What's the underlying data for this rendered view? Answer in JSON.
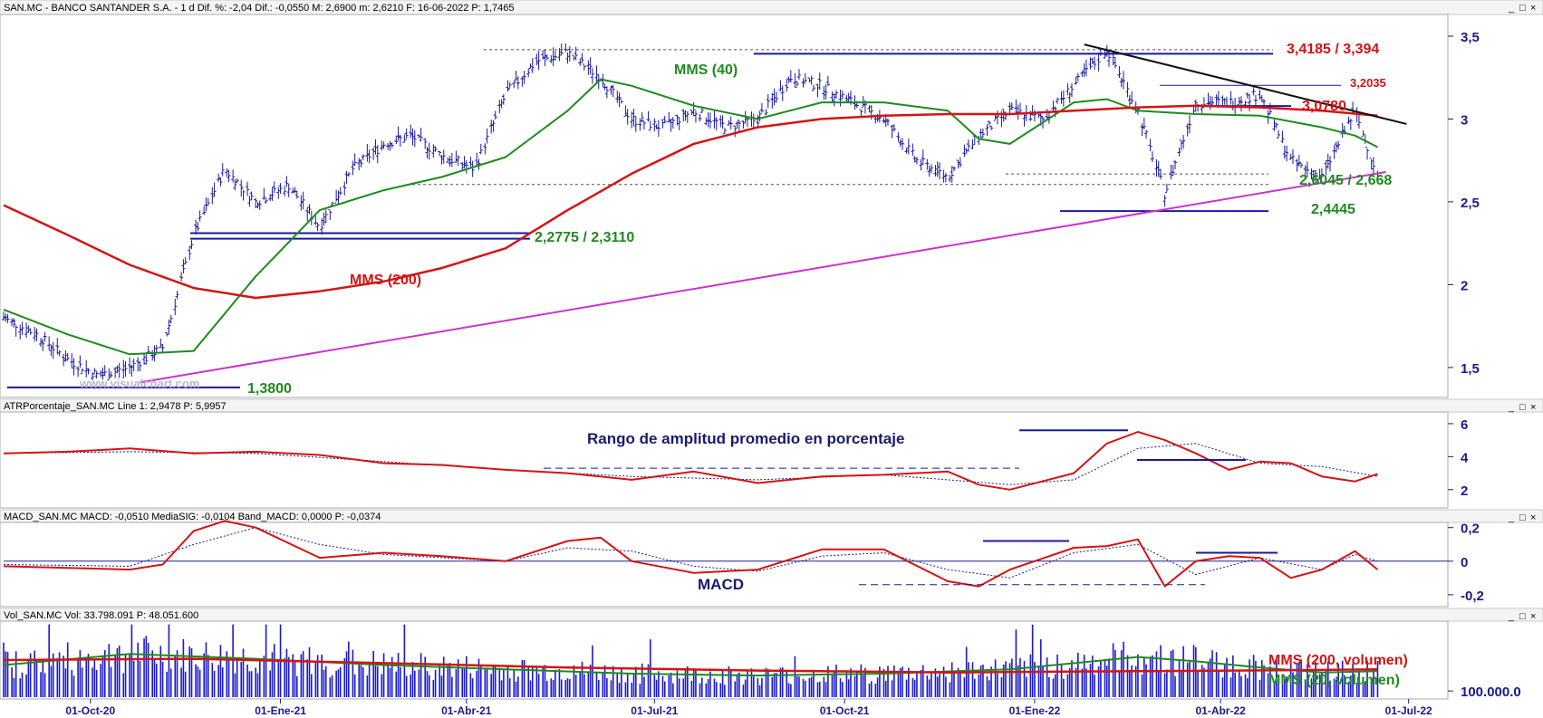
{
  "panels": {
    "price": {
      "header": "SAN.MC - BANCO SANTANDER S.A. - 1 d Dif. %: -2,04 Dif.: -0,0550 M: 2,6900 m: 2,6210 F: 16-06-2022 P: 1,7465"
    },
    "atr": {
      "header": "ATRPorcentaje_SAN.MC Line 1: 2,9478 P: 5,9957"
    },
    "macd": {
      "header": "MACD_SAN.MC MACD: -0,0510 MediaSIG: -0,0104 Band_MACD: 0,0000 P: -0,0374"
    },
    "vol": {
      "header": "Vol_SAN.MC Vol: 33.798.091 P: 48.051.600"
    }
  },
  "watermark": "www.visualchart.com",
  "window_buttons": [
    "_",
    "□",
    "×"
  ],
  "chart_data": [
    {
      "type": "line",
      "subtype": "ohlc-bars",
      "name": "price",
      "title": "SAN.MC - BANCO SANTANDER S.A. - 1 d",
      "x_ticks": [
        "01-Oct-20",
        "01-Ene-21",
        "01-Abr-21",
        "01-Jul-21",
        "01-Oct-21",
        "01-Ene-22",
        "01-Abr-22",
        "01-Jul-22"
      ],
      "x_range": [
        "2020-08-20",
        "2022-07-20"
      ],
      "y_ticks": [
        "3,5",
        "3",
        "2,5",
        "2",
        "1,5"
      ],
      "ylim": [
        1.33,
        3.62
      ],
      "series": [
        {
          "name": "price",
          "color": "#1a1a9c",
          "x": [
            "2020-08-20",
            "2020-09-05",
            "2020-09-20",
            "2020-10-05",
            "2020-10-20",
            "2020-11-05",
            "2020-11-20",
            "2020-12-05",
            "2020-12-20",
            "2021-01-05",
            "2021-01-20",
            "2021-02-05",
            "2021-02-20",
            "2021-03-05",
            "2021-03-20",
            "2021-04-05",
            "2021-04-20",
            "2021-05-05",
            "2021-05-20",
            "2021-06-05",
            "2021-06-20",
            "2021-07-05",
            "2021-07-20",
            "2021-08-05",
            "2021-08-20",
            "2021-09-05",
            "2021-09-20",
            "2021-10-05",
            "2021-10-20",
            "2021-11-05",
            "2021-11-20",
            "2021-12-05",
            "2021-12-20",
            "2022-01-05",
            "2022-01-20",
            "2022-02-05",
            "2022-02-20",
            "2022-03-05",
            "2022-03-20",
            "2022-04-05",
            "2022-04-20",
            "2022-05-05",
            "2022-05-20",
            "2022-06-05",
            "2022-06-16"
          ],
          "values": [
            1.8,
            1.7,
            1.55,
            1.45,
            1.5,
            1.62,
            2.3,
            2.7,
            2.5,
            2.6,
            2.35,
            2.7,
            2.85,
            2.9,
            2.78,
            2.7,
            3.15,
            3.35,
            3.4,
            3.25,
            3.0,
            2.95,
            3.05,
            2.95,
            3.0,
            3.25,
            3.2,
            3.1,
            3.0,
            2.75,
            2.65,
            2.9,
            3.05,
            3.0,
            3.2,
            3.42,
            3.05,
            2.55,
            3.1,
            3.1,
            3.15,
            2.75,
            2.65,
            3.05,
            2.66
          ]
        },
        {
          "name": "MMS (40)",
          "color": "#1f8a1f",
          "x": [
            "2020-08-20",
            "2020-09-20",
            "2020-10-20",
            "2020-11-20",
            "2020-12-20",
            "2021-01-20",
            "2021-02-20",
            "2021-03-20",
            "2021-04-20",
            "2021-05-20",
            "2021-06-05",
            "2021-06-20",
            "2021-07-20",
            "2021-08-20",
            "2021-09-20",
            "2021-10-20",
            "2021-11-20",
            "2021-12-05",
            "2021-12-20",
            "2022-01-20",
            "2022-02-05",
            "2022-02-20",
            "2022-03-20",
            "2022-04-20",
            "2022-05-20",
            "2022-06-05",
            "2022-06-16"
          ],
          "values": [
            1.85,
            1.7,
            1.58,
            1.6,
            2.05,
            2.45,
            2.57,
            2.65,
            2.77,
            3.05,
            3.24,
            3.2,
            3.08,
            3.0,
            3.1,
            3.1,
            3.05,
            2.88,
            2.85,
            3.1,
            3.12,
            3.05,
            3.03,
            3.02,
            2.95,
            2.9,
            2.83
          ]
        },
        {
          "name": "MMS (200)",
          "color": "#d41414",
          "x": [
            "2020-08-20",
            "2020-09-20",
            "2020-10-20",
            "2020-11-20",
            "2020-12-20",
            "2021-01-20",
            "2021-02-20",
            "2021-03-20",
            "2021-04-20",
            "2021-05-20",
            "2021-06-20",
            "2021-07-20",
            "2021-08-20",
            "2021-09-20",
            "2021-10-20",
            "2021-11-20",
            "2021-12-20",
            "2022-01-20",
            "2022-02-20",
            "2022-03-20",
            "2022-04-20",
            "2022-05-20",
            "2022-06-16"
          ],
          "values": [
            2.48,
            2.3,
            2.12,
            1.98,
            1.92,
            1.96,
            2.02,
            2.1,
            2.22,
            2.45,
            2.67,
            2.85,
            2.95,
            3.0,
            3.02,
            3.03,
            3.03,
            3.05,
            3.07,
            3.08,
            3.07,
            3.05,
            3.02
          ]
        }
      ],
      "annotations": [
        {
          "label": "MMS (40)",
          "color": "#1f8a1f"
        },
        {
          "label": "MMS (200)",
          "color": "#d41414"
        },
        {
          "label": "3,4185 / 3,394",
          "color": "#d41414",
          "levels": [
            3.4185,
            3.394
          ]
        },
        {
          "label": "3,2035",
          "color": "#d41414",
          "levels": [
            3.2035
          ]
        },
        {
          "label": "3,0780",
          "color": "#d41414",
          "levels": [
            3.078
          ]
        },
        {
          "label": "2,6045 / 2,668",
          "color": "#1f8a1f",
          "levels": [
            2.6045,
            2.668
          ]
        },
        {
          "label": "2,4445",
          "color": "#1f8a1f",
          "levels": [
            2.4445
          ]
        },
        {
          "label": "2,2775 / 2,3110",
          "color": "#1f8a1f",
          "levels": [
            2.2775,
            2.311
          ]
        },
        {
          "label": "1,3800",
          "color": "#1f8a1f",
          "levels": [
            1.38
          ]
        }
      ],
      "trendlines": [
        {
          "color": "#cc33cc",
          "from": [
            "2020-10-25",
            1.41
          ],
          "to": [
            "2022-06-20",
            2.68
          ]
        },
        {
          "color": "#111111",
          "from": [
            "2022-01-25",
            3.45
          ],
          "to": [
            "2022-06-30",
            2.97
          ]
        }
      ]
    },
    {
      "type": "line",
      "name": "atr",
      "title": "Rango de amplitud promedio en porcentaje",
      "y_ticks": [
        "6",
        "4",
        "2"
      ],
      "ylim": [
        1.0,
        6.6
      ],
      "series": [
        {
          "name": "ATR %",
          "color": "#d41414",
          "x": [
            "2020-08-20",
            "2020-09-20",
            "2020-10-20",
            "2020-11-20",
            "2020-12-20",
            "2021-01-20",
            "2021-02-20",
            "2021-03-20",
            "2021-04-20",
            "2021-05-20",
            "2021-06-20",
            "2021-07-20",
            "2021-08-20",
            "2021-09-20",
            "2021-10-20",
            "2021-11-20",
            "2021-12-05",
            "2021-12-20",
            "2022-01-20",
            "2022-02-05",
            "2022-02-20",
            "2022-03-05",
            "2022-03-20",
            "2022-04-05",
            "2022-04-20",
            "2022-05-05",
            "2022-05-20",
            "2022-06-05",
            "2022-06-16"
          ],
          "values": [
            4.2,
            4.3,
            4.5,
            4.2,
            4.3,
            4.1,
            3.6,
            3.5,
            3.2,
            3.0,
            2.6,
            3.1,
            2.4,
            2.8,
            2.9,
            3.1,
            2.3,
            2.0,
            3.0,
            4.8,
            5.5,
            5.0,
            4.2,
            3.2,
            3.7,
            3.6,
            2.8,
            2.5,
            2.95
          ]
        },
        {
          "name": "signal",
          "color": "#1a1a9c",
          "x": [
            "2020-08-20",
            "2020-10-20",
            "2020-12-20",
            "2021-02-20",
            "2021-04-20",
            "2021-06-20",
            "2021-08-20",
            "2021-10-20",
            "2021-12-20",
            "2022-01-20",
            "2022-02-20",
            "2022-03-20",
            "2022-04-20",
            "2022-05-20",
            "2022-06-16"
          ],
          "values": [
            4.2,
            4.3,
            4.2,
            3.7,
            3.2,
            2.8,
            2.6,
            2.9,
            2.3,
            2.6,
            4.5,
            4.8,
            3.6,
            3.4,
            2.8
          ]
        }
      ]
    },
    {
      "type": "line",
      "name": "macd",
      "title": "MACD",
      "y_ticks": [
        "0,2",
        "0",
        "-0,2"
      ],
      "ylim": [
        -0.26,
        0.22
      ],
      "series": [
        {
          "name": "MACD",
          "color": "#d41414",
          "x": [
            "2020-08-20",
            "2020-09-20",
            "2020-10-20",
            "2020-11-05",
            "2020-11-20",
            "2020-12-05",
            "2020-12-20",
            "2021-01-20",
            "2021-02-20",
            "2021-03-20",
            "2021-04-20",
            "2021-05-20",
            "2021-06-05",
            "2021-06-20",
            "2021-07-20",
            "2021-08-20",
            "2021-09-20",
            "2021-10-20",
            "2021-11-20",
            "2021-12-05",
            "2021-12-20",
            "2022-01-20",
            "2022-02-05",
            "2022-02-20",
            "2022-03-05",
            "2022-03-20",
            "2022-04-05",
            "2022-04-20",
            "2022-05-05",
            "2022-05-20",
            "2022-06-05",
            "2022-06-16"
          ],
          "values": [
            -0.03,
            -0.04,
            -0.05,
            -0.02,
            0.18,
            0.24,
            0.2,
            0.02,
            0.05,
            0.03,
            0.0,
            0.12,
            0.14,
            0.0,
            -0.07,
            -0.05,
            0.07,
            0.07,
            -0.12,
            -0.15,
            -0.05,
            0.08,
            0.09,
            0.13,
            -0.15,
            0.0,
            0.03,
            0.02,
            -0.1,
            -0.05,
            0.06,
            -0.05
          ]
        },
        {
          "name": "MediaSIG",
          "color": "#1a1a9c",
          "x": [
            "2020-08-20",
            "2020-10-20",
            "2020-11-20",
            "2020-12-20",
            "2021-01-20",
            "2021-02-20",
            "2021-04-20",
            "2021-05-20",
            "2021-06-20",
            "2021-07-20",
            "2021-08-20",
            "2021-09-20",
            "2021-10-20",
            "2021-11-20",
            "2021-12-20",
            "2022-01-20",
            "2022-02-20",
            "2022-03-20",
            "2022-04-20",
            "2022-05-20",
            "2022-06-05",
            "2022-06-16"
          ],
          "values": [
            -0.02,
            -0.03,
            0.1,
            0.2,
            0.1,
            0.04,
            0.0,
            0.08,
            0.06,
            -0.03,
            -0.06,
            0.03,
            0.05,
            -0.05,
            -0.1,
            0.05,
            0.1,
            -0.08,
            0.02,
            -0.05,
            0.04,
            0.0
          ]
        }
      ]
    },
    {
      "type": "bar",
      "name": "volume",
      "y_ticks": [
        "100.000.0"
      ],
      "ylim": [
        0,
        120000000
      ],
      "series": [
        {
          "name": "MMS (200, volumen)",
          "color": "#d41414",
          "x": [
            "2020-08-20",
            "2020-11-20",
            "2021-02-20",
            "2021-05-20",
            "2021-08-20",
            "2021-11-20",
            "2022-02-20",
            "2022-05-20",
            "2022-06-16"
          ],
          "values": [
            60000000,
            62000000,
            55000000,
            48000000,
            43000000,
            40000000,
            42000000,
            44000000,
            45000000
          ]
        },
        {
          "name": "MMS (20, volumen)",
          "color": "#1f8a1f",
          "x": [
            "2020-08-20",
            "2020-10-20",
            "2020-12-20",
            "2021-02-20",
            "2021-04-20",
            "2021-06-20",
            "2021-08-20",
            "2021-10-20",
            "2021-12-20",
            "2022-02-20",
            "2022-03-20",
            "2022-04-20",
            "2022-05-20",
            "2022-06-16"
          ],
          "values": [
            52000000,
            70000000,
            62000000,
            52000000,
            45000000,
            38000000,
            35000000,
            38000000,
            45000000,
            65000000,
            58000000,
            48000000,
            40000000,
            42000000
          ]
        }
      ]
    }
  ]
}
